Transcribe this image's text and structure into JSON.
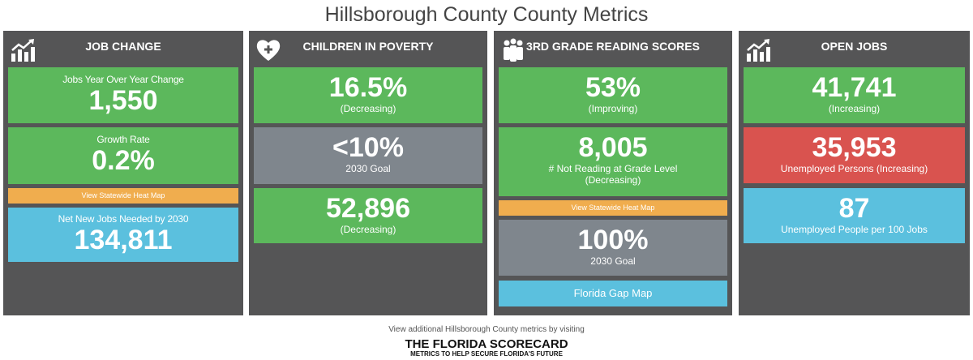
{
  "title": "Hillsborough County County Metrics",
  "panels": [
    {
      "title": "JOB CHANGE",
      "icon": "chart-growth-icon",
      "jobs_label": "Jobs Year Over Year Change",
      "jobs_value": "1,550",
      "growth_label": "Growth Rate",
      "growth_value": "0.2%",
      "heatmap": "View Statewide Heat Map",
      "needed_label": "Net New Jobs Needed by 2030",
      "needed_value": "134,811"
    },
    {
      "title": "CHILDREN IN POVERTY",
      "icon": "heart-plus-icon",
      "rate_value": "16.5%",
      "rate_status": "(Decreasing)",
      "goal_value": "<10%",
      "goal_label": "2030 Goal",
      "count_value": "52,896",
      "count_status": "(Decreasing)"
    },
    {
      "title": "3RD GRADE READING SCORES",
      "icon": "people-icon",
      "score_value": "53%",
      "score_status": "(Improving)",
      "not_value": "8,005",
      "not_label": "# Not Reading at Grade Level",
      "not_status": "(Decreasing)",
      "heatmap": "View Statewide Heat Map",
      "goal_value": "100%",
      "goal_label": "2030 Goal",
      "gap": "Florida Gap Map"
    },
    {
      "title": "OPEN JOBS",
      "icon": "chart-growth-icon",
      "open_value": "41,741",
      "open_status": "(Increasing)",
      "unemp_value": "35,953",
      "unemp_label": "Unemployed Persons (Increasing)",
      "ratio_value": "87",
      "ratio_label": "Unemployed People per 100 Jobs"
    }
  ],
  "footer": {
    "text": "View additional Hillsborough County metrics by visiting",
    "logo_line1": "THE FLORIDA SCORECARD",
    "logo_line2": "METRICS TO HELP SECURE FLORIDA'S FUTURE"
  },
  "colors": {
    "green": "#5cb85c",
    "gray": "#7f868d",
    "orange": "#f0ad4e",
    "blue": "#5bc0de",
    "red": "#d9534f",
    "panel": "#555556"
  }
}
